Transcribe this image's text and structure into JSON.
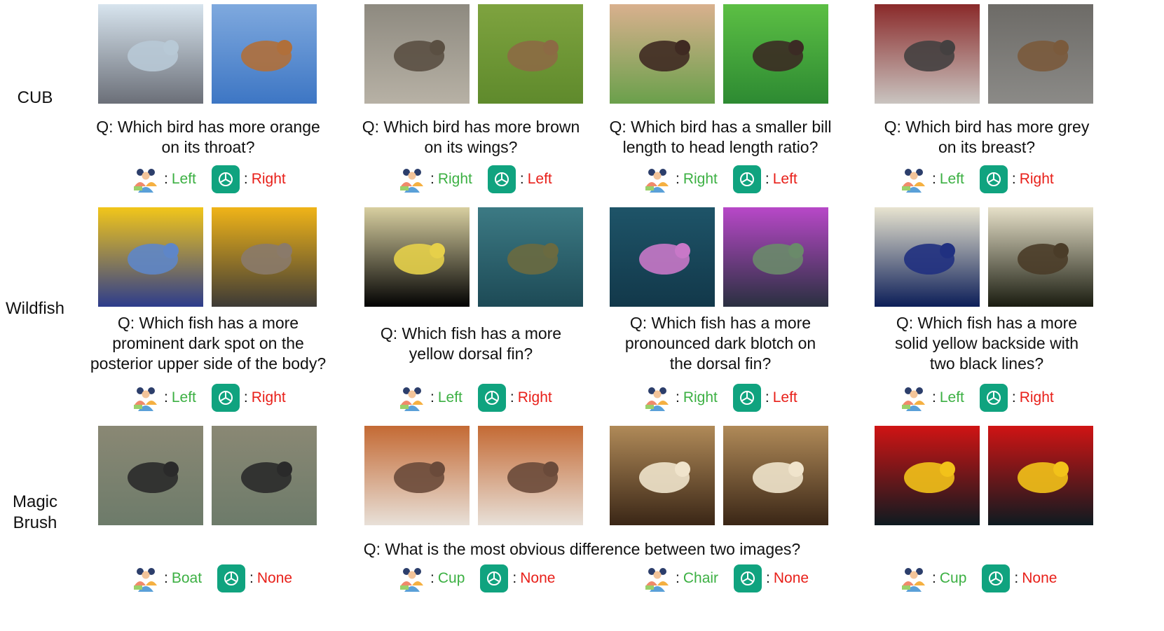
{
  "rows": [
    {
      "label": "CUB"
    },
    {
      "label": "Wildfish"
    },
    {
      "label": "Magic\nBrush"
    }
  ],
  "cub": [
    {
      "question": "Q: Which bird has more orange\non its throat?",
      "human": "Left",
      "gpt": "Right",
      "images": [
        "bird-eating-berries-framed",
        "bird-eating-berries"
      ]
    },
    {
      "question": "Q: Which bird has more brown\non its wings?",
      "human": "Right",
      "gpt": "Left",
      "images": [
        "bird-on-post",
        "bird-on-grass"
      ]
    },
    {
      "question": "Q: Which bird has a smaller bill\nlength to head length ratio?",
      "human": "Right",
      "gpt": "Left",
      "images": [
        "bird-in-hand",
        "bird-on-branch"
      ]
    },
    {
      "question": "Q: Which bird has more grey\non its breast?",
      "human": "Left",
      "gpt": "Right",
      "images": [
        "bird-in-berry-bush",
        "bird-on-pavement"
      ]
    }
  ],
  "wildfish": [
    {
      "question": "Q: Which fish has a more\nprominent dark spot on the\nposterior upper side of the body?",
      "human": "Left",
      "gpt": "Right",
      "images": [
        "yellow-fish-spot",
        "yellow-fish"
      ]
    },
    {
      "question": "Q: Which fish has a more\nyellow dorsal fin?",
      "human": "Left",
      "gpt": "Right",
      "images": [
        "tang-on-black",
        "tang-on-reef"
      ]
    },
    {
      "question": "Q: Which fish has a more\npronounced dark blotch on\nthe dorsal fin?",
      "human": "Right",
      "gpt": "Left",
      "images": [
        "pink-anthias-blue",
        "pink-anthias-reef"
      ]
    },
    {
      "question": "Q: Which fish has a more\nsolid yellow backside with\ntwo black lines?",
      "human": "Left",
      "gpt": "Right",
      "images": [
        "butterflyfish-stock",
        "butterflyfish-reef"
      ]
    }
  ],
  "magicbrush": {
    "question": "Q: What is the most obvious difference between two images?",
    "items": [
      {
        "human": "Boat",
        "gpt": "None",
        "images": [
          "beach-kick",
          "beach-kick-edited"
        ]
      },
      {
        "human": "Cup",
        "gpt": "None",
        "images": [
          "pizza-plate",
          "pizza-plate-edited"
        ]
      },
      {
        "human": "Chair",
        "gpt": "None",
        "images": [
          "hotel-room",
          "hotel-room-edited"
        ]
      },
      {
        "human": "Cup",
        "gpt": "None",
        "images": [
          "apples-bananas",
          "apples-bananas-edited"
        ]
      }
    ]
  },
  "answer_separator": ":",
  "icons": {
    "human": "people-group-icon",
    "gpt": "chatgpt-icon"
  },
  "colors": {
    "correct": "#3cb043",
    "wrong": "#e8201a",
    "gpt_bg": "#10a37f"
  }
}
